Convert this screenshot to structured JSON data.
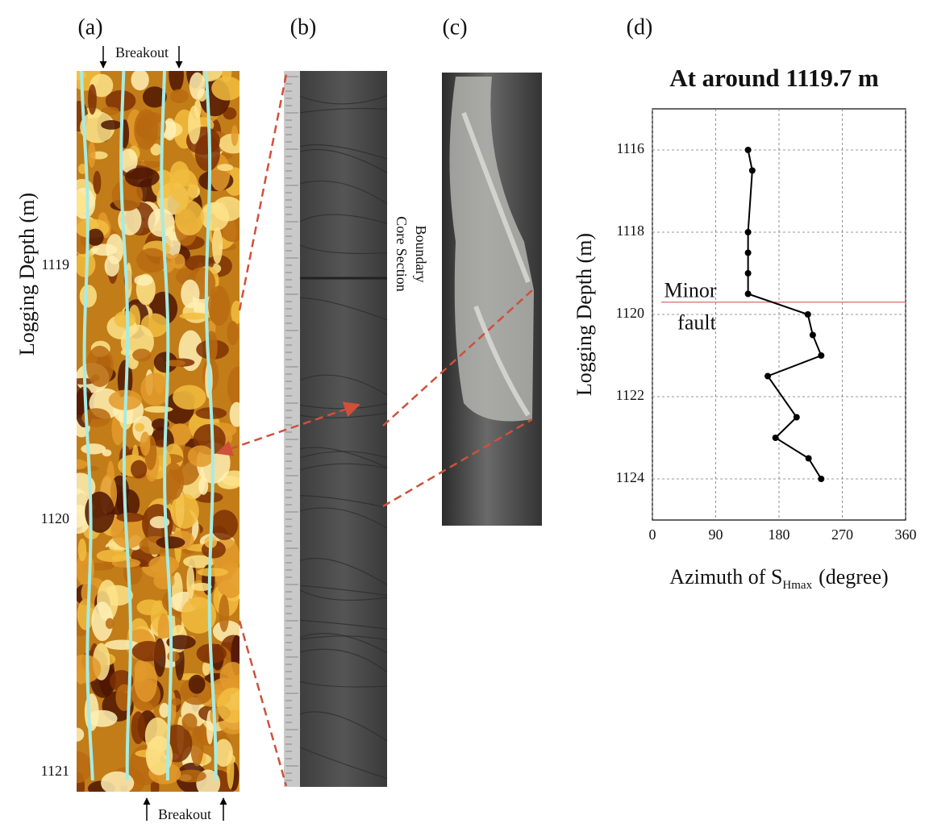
{
  "panels": {
    "a": {
      "label": "(a)",
      "breakout_top": "Breakout",
      "breakout_bottom": "Breakout",
      "ylabel": "Logging Depth (m)",
      "depth_labels": [
        "1119",
        "1120",
        "1121"
      ]
    },
    "b": {
      "label": "(b)",
      "boundary_label": [
        "Core Section",
        "Boundary"
      ]
    },
    "c": {
      "label": "(c)"
    },
    "d": {
      "label": "(d)"
    }
  },
  "chart_data": {
    "type": "line",
    "title": "At around 1119.7 m",
    "ylabel": "Logging Depth (m)",
    "xlabel": {
      "text": "Azimuth of S",
      "subscript": "Hmax",
      "suffix": "(degree)"
    },
    "x": [
      136,
      142,
      136,
      136,
      136,
      136,
      221,
      228,
      240,
      164,
      205,
      175,
      222,
      240
    ],
    "values": [
      1116,
      1116.5,
      1118,
      1118.5,
      1119,
      1119.5,
      1120,
      1120.5,
      1121,
      1121.5,
      1122.5,
      1123,
      1123.5,
      1124
    ],
    "color": "#000000",
    "xlim": [
      0,
      360
    ],
    "xticks": [
      0,
      90,
      180,
      270,
      360
    ],
    "ylim": [
      1125,
      1115
    ],
    "yticks": [
      1116,
      1118,
      1120,
      1122,
      1124
    ],
    "grid": true,
    "fault_depth": 1119.7,
    "fault_label": [
      "Minor",
      "fault"
    ],
    "fault_color": "#e08080"
  }
}
